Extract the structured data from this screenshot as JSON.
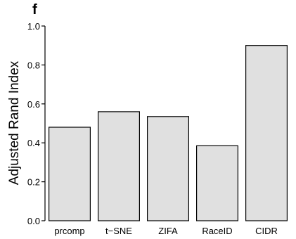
{
  "panel_label": "f",
  "chart_data": {
    "type": "bar",
    "categories": [
      "prcomp",
      "t−SNE",
      "ZIFA",
      "RaceID",
      "CIDR"
    ],
    "values": [
      0.48,
      0.56,
      0.535,
      0.385,
      0.9
    ],
    "ylabel": "Adjusted Rand Index",
    "xlabel": "",
    "ylim": [
      0,
      1.0
    ],
    "yticks": [
      "0.0",
      "0.2",
      "0.4",
      "0.6",
      "0.8",
      "1.0"
    ],
    "grid": false,
    "bar_color": "#e0e0e0",
    "bar_edge_color": "#000000"
  }
}
